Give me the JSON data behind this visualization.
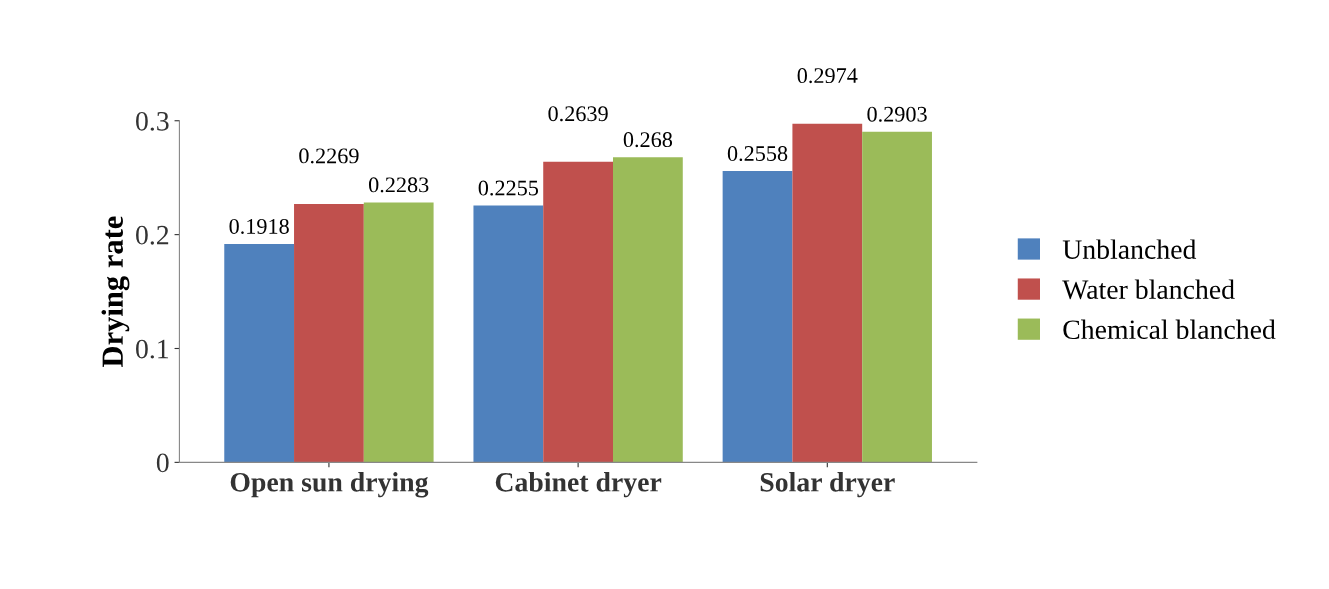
{
  "chart_data": {
    "type": "bar",
    "ylabel": "Drying rate",
    "categories": [
      "Open sun drying",
      "Cabinet dryer",
      "Solar dryer"
    ],
    "series": [
      {
        "name": "Unblanched",
        "color": "#4f81bd",
        "values": [
          0.1918,
          0.2255,
          0.2558
        ]
      },
      {
        "name": "Water blanched",
        "color": "#c0504d",
        "values": [
          0.2269,
          0.2639,
          0.2974
        ]
      },
      {
        "name": "Chemical blanched",
        "color": "#9bbb59",
        "values": [
          0.2283,
          0.268,
          0.2903
        ]
      }
    ],
    "ylim": [
      0,
      0.3
    ],
    "yticks": [
      0,
      0.1,
      0.2,
      0.3
    ],
    "grid": false,
    "legend": "right",
    "data_labels": true
  }
}
